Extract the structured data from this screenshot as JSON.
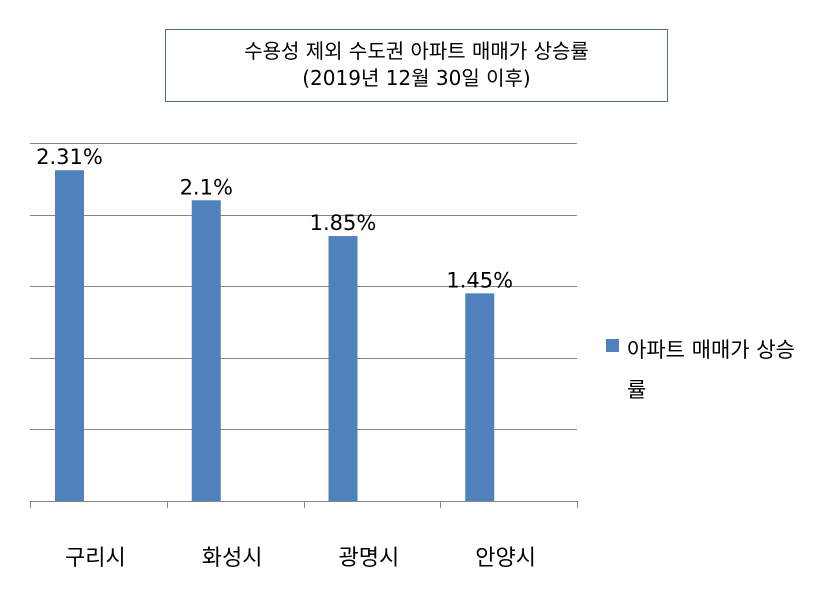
{
  "colors": {
    "bar": "#4f81bd",
    "grid": "#868686",
    "axis": "#868686",
    "title_border": "#4f6d8e"
  },
  "chart_data": {
    "type": "bar",
    "title": [
      "수용성 제외 수도권 아파트 매매가 상승률",
      "(2019년 12월 30일 이후)"
    ],
    "categories": [
      "구리시",
      "화성시",
      "광명시",
      "안양시"
    ],
    "series": [
      {
        "name": "아파트 매매가 상승률",
        "values": [
          2.31,
          2.1,
          1.85,
          1.45
        ]
      }
    ],
    "data_labels": [
      "2.31%",
      "2.1%",
      "1.85%",
      "1.45%"
    ],
    "ylim": [
      0,
      2.5
    ],
    "grid": true,
    "legend": "right",
    "xlabel": "",
    "ylabel": ""
  }
}
